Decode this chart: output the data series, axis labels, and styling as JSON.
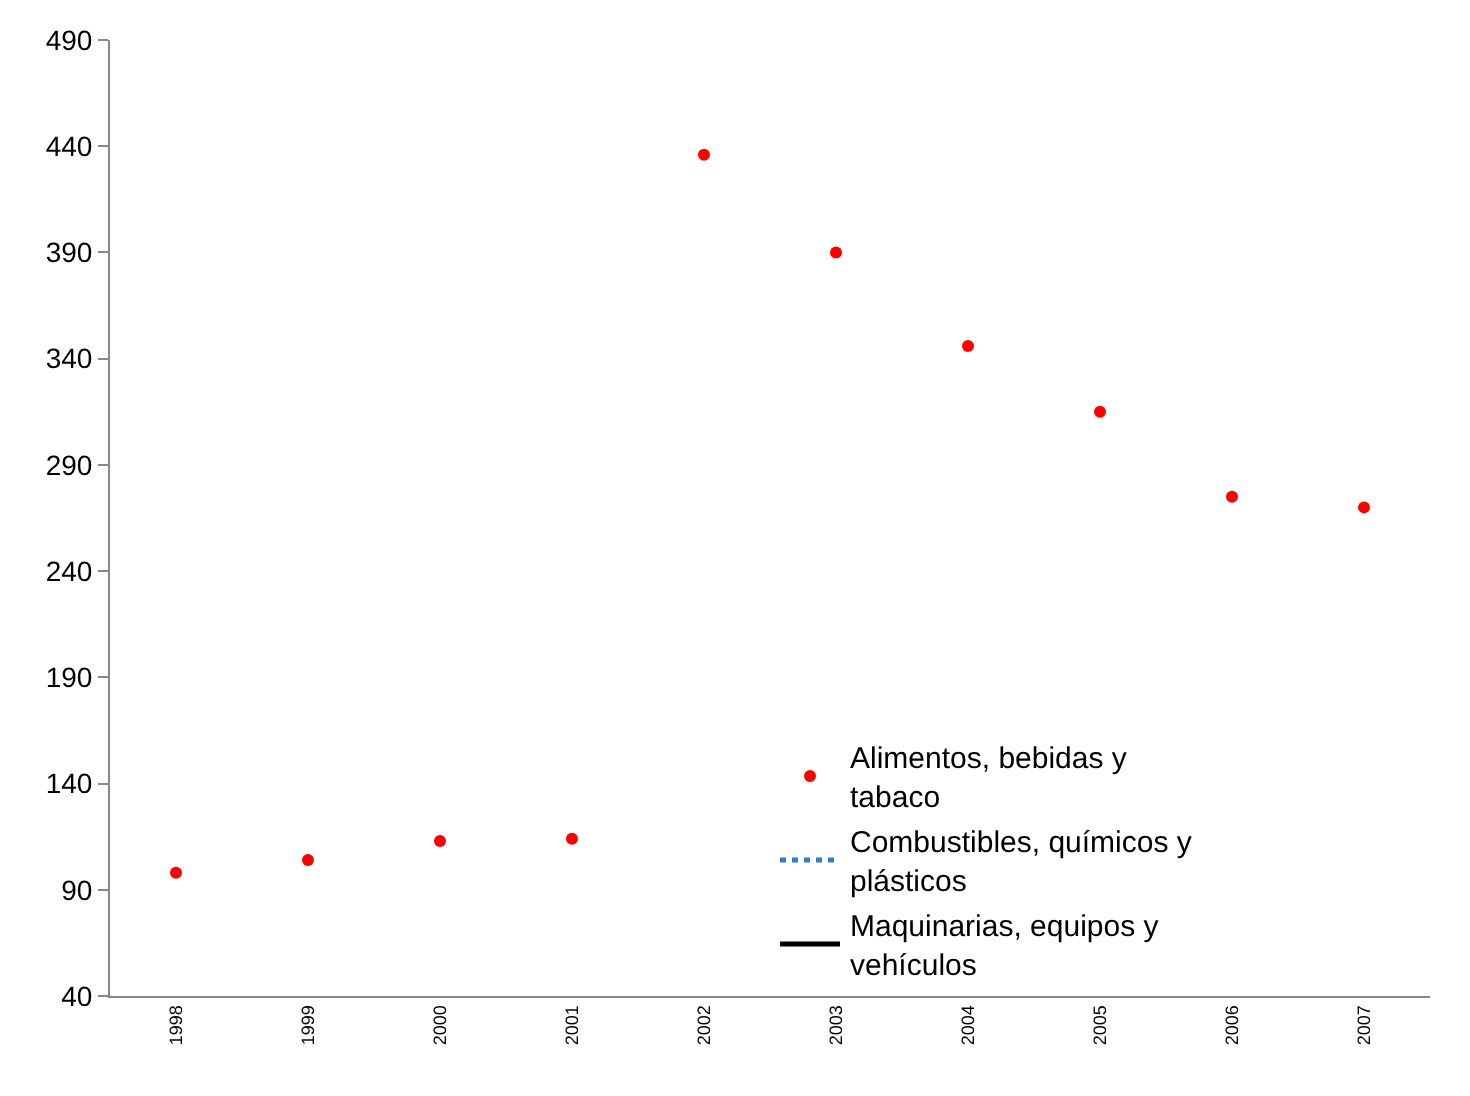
{
  "chart_data": {
    "type": "scatter",
    "categories": [
      "1998",
      "1999",
      "2000",
      "2001",
      "2002",
      "2003",
      "2004",
      "2005",
      "2006",
      "2007"
    ],
    "series": [
      {
        "name": "Alimentos, bebidas y tabaco",
        "color": "#ff0000",
        "marker": "circle",
        "values": [
          98,
          104,
          113,
          114,
          436,
          390,
          346,
          315,
          275,
          270
        ]
      },
      {
        "name": "Combustibles, químicos y plásticos",
        "type": "line",
        "color": "#2e7ec8",
        "line_style": "dotted",
        "values": [
          null,
          null,
          null,
          null,
          null,
          null,
          null,
          null,
          null,
          null
        ]
      },
      {
        "name": "Maquinarias, equipos y vehículos",
        "type": "line",
        "color": "#000000",
        "line_style": "solid",
        "values": [
          null,
          null,
          null,
          null,
          null,
          null,
          null,
          null,
          null,
          null
        ]
      }
    ],
    "ylim": [
      40,
      490
    ],
    "yticks": [
      40,
      90,
      140,
      190,
      240,
      290,
      340,
      390,
      440,
      490
    ],
    "grid": false,
    "legend": "bottom right"
  }
}
